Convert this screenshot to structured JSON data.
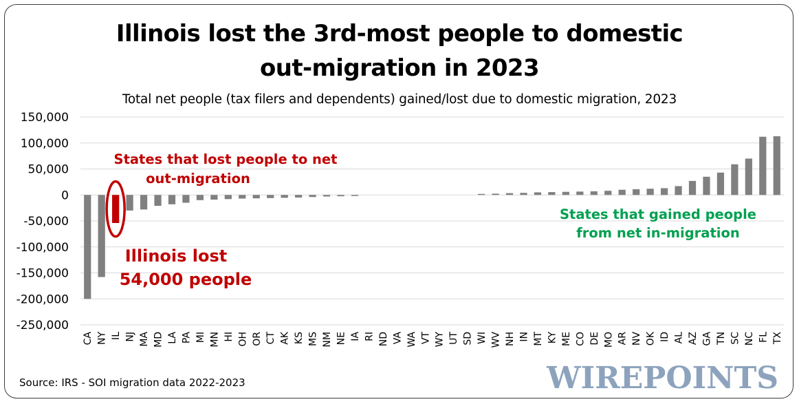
{
  "header": {
    "title_line1": "Illinois lost the 3rd-most people to domestic",
    "title_line2": "out-migration in 2023",
    "subtitle": "Total net people (tax filers and dependents) gained/lost due to domestic migration, 2023"
  },
  "footer": {
    "source": "Source: IRS - SOI migration data 2022-2023",
    "logo": "WIREPOINTS"
  },
  "annotations": {
    "lost_line1": "States that lost people to net",
    "lost_line2": "out-migration",
    "illinois_line1": "Illinois lost",
    "illinois_line2": "54,000 people",
    "gained_line1": "States that gained people",
    "gained_line2": "from net in-migration"
  },
  "colors": {
    "bar": "#808080",
    "highlight": "#c00000",
    "lost_text": "#c00000",
    "gained_text": "#00a050",
    "grid": "#d9d9d9"
  },
  "chart_data": {
    "type": "bar",
    "title": "Illinois lost the 3rd-most people to domestic out-migration in 2023",
    "subtitle": "Total net people (tax filers and dependents) gained/lost due to domestic migration, 2023",
    "xlabel": "",
    "ylabel": "",
    "ylim": [
      -250000,
      150000
    ],
    "yticks": [
      150000,
      100000,
      50000,
      0,
      -50000,
      -100000,
      -150000,
      -200000,
      -250000
    ],
    "ytick_labels": [
      "150,000",
      "100,000",
      "50,000",
      "0",
      "-50,000",
      "-100,000",
      "-150,000",
      "-200,000",
      "-250,000"
    ],
    "grid": true,
    "legend": "none",
    "highlight_category": "IL",
    "categories": [
      "CA",
      "NY",
      "IL",
      "NJ",
      "MA",
      "MD",
      "LA",
      "PA",
      "MI",
      "MN",
      "HI",
      "OH",
      "OR",
      "CT",
      "AK",
      "KS",
      "MS",
      "NM",
      "NE",
      "IA",
      "RI",
      "ND",
      "VA",
      "WA",
      "VT",
      "WY",
      "UT",
      "SD",
      "WI",
      "WV",
      "NH",
      "IN",
      "MT",
      "KY",
      "ME",
      "CO",
      "DE",
      "MO",
      "AR",
      "NV",
      "OK",
      "ID",
      "AL",
      "AZ",
      "GA",
      "TN",
      "SC",
      "NC",
      "FL",
      "TX"
    ],
    "values": [
      -200000,
      -158000,
      -54000,
      -30000,
      -28000,
      -21000,
      -18000,
      -15000,
      -10000,
      -9000,
      -8000,
      -7000,
      -6500,
      -6000,
      -5500,
      -5000,
      -4000,
      -3000,
      -2500,
      -2000,
      0,
      0,
      0,
      0,
      0,
      0,
      0,
      0,
      2000,
      2500,
      3500,
      4000,
      5000,
      5500,
      6000,
      6500,
      7000,
      8000,
      10000,
      11000,
      12000,
      13000,
      17000,
      27000,
      35000,
      43000,
      59000,
      70000,
      112000,
      113000
    ]
  }
}
